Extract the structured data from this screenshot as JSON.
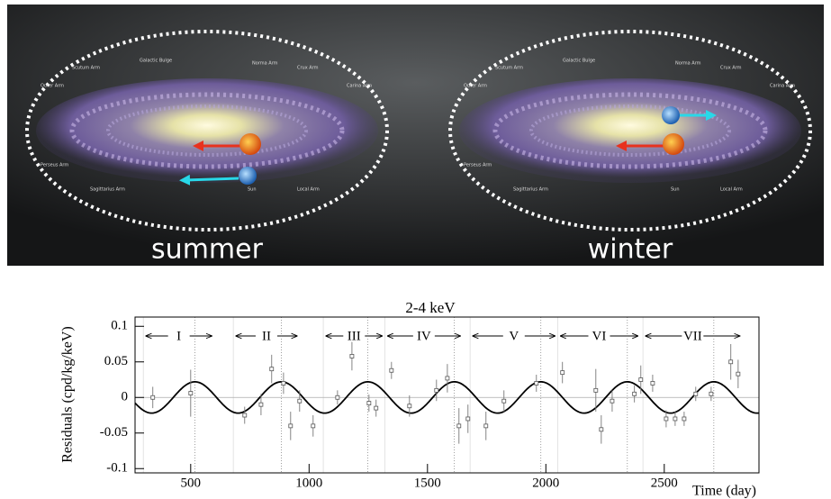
{
  "illustration": {
    "panels": [
      {
        "caption": "summer",
        "labels": [
          "Scutum Arm",
          "Galactic Bulge",
          "Norma Arm",
          "Crux Arm",
          "Carina Arm",
          "Outer Arm",
          "Perseus Arm",
          "Sagittarius Arm",
          "Sun",
          "Local Arm"
        ]
      },
      {
        "caption": "winter",
        "labels": [
          "Scutum Arm",
          "Galactic Bulge",
          "Norma Arm",
          "Crux Arm",
          "Carina Arm",
          "Outer Arm",
          "Perseus Arm",
          "Sagittarius Arm",
          "Sun",
          "Local Arm"
        ]
      }
    ]
  },
  "chart_data": {
    "type": "scatter",
    "title": "2-4 keV",
    "x_label": "Time (day)",
    "y_label": "Residuals (cpd/kg/keV)",
    "x": [
      340,
      500,
      728,
      797,
      842,
      892,
      922,
      960,
      1017,
      1120,
      1181,
      1253,
      1283,
      1348,
      1424,
      1538,
      1584,
      1633,
      1671,
      1747,
      1823,
      1960,
      2070,
      2211,
      2234,
      2280,
      2374,
      2401,
      2451,
      2508,
      2546,
      2584,
      2633,
      2698,
      2781,
      2812
    ],
    "values": [
      0.0,
      0.006,
      -0.025,
      -0.01,
      0.04,
      0.02,
      -0.04,
      -0.005,
      -0.04,
      0.0,
      0.058,
      -0.008,
      -0.015,
      0.038,
      -0.012,
      0.01,
      0.027,
      -0.04,
      -0.03,
      -0.04,
      -0.005,
      0.02,
      0.035,
      0.01,
      -0.045,
      -0.005,
      0.005,
      0.025,
      0.02,
      -0.03,
      -0.03,
      -0.03,
      0.005,
      0.005,
      0.05,
      0.033
    ],
    "errors": [
      0.015,
      0.033,
      0.012,
      0.015,
      0.02,
      0.015,
      0.02,
      0.015,
      0.015,
      0.01,
      0.02,
      0.012,
      0.012,
      0.012,
      0.015,
      0.015,
      0.02,
      0.025,
      0.02,
      0.02,
      0.015,
      0.012,
      0.015,
      0.03,
      0.02,
      0.015,
      0.012,
      0.02,
      0.012,
      0.012,
      0.01,
      0.01,
      0.01,
      0.01,
      0.025,
      0.02
    ],
    "fit": {
      "amplitude": 0.022,
      "period": 365.25,
      "phase": 152.5
    },
    "cycles": [
      {
        "label": "I",
        "start": 300,
        "end": 600
      },
      {
        "label": "II",
        "start": 680,
        "end": 960
      },
      {
        "label": "III",
        "start": 1060,
        "end": 1320
      },
      {
        "label": "IV",
        "start": 1320,
        "end": 1650
      },
      {
        "label": "V",
        "start": 1680,
        "end": 2050
      },
      {
        "label": "VI",
        "start": 2050,
        "end": 2400
      },
      {
        "label": "VII",
        "start": 2410,
        "end": 2830
      }
    ],
    "xlim": [
      265,
      2900
    ],
    "ylim": [
      -0.106,
      0.113
    ],
    "xticks": [
      500,
      1000,
      1500,
      2000,
      2500
    ],
    "yticks": [
      -0.1,
      -0.05,
      0,
      0.05,
      0.1
    ]
  }
}
